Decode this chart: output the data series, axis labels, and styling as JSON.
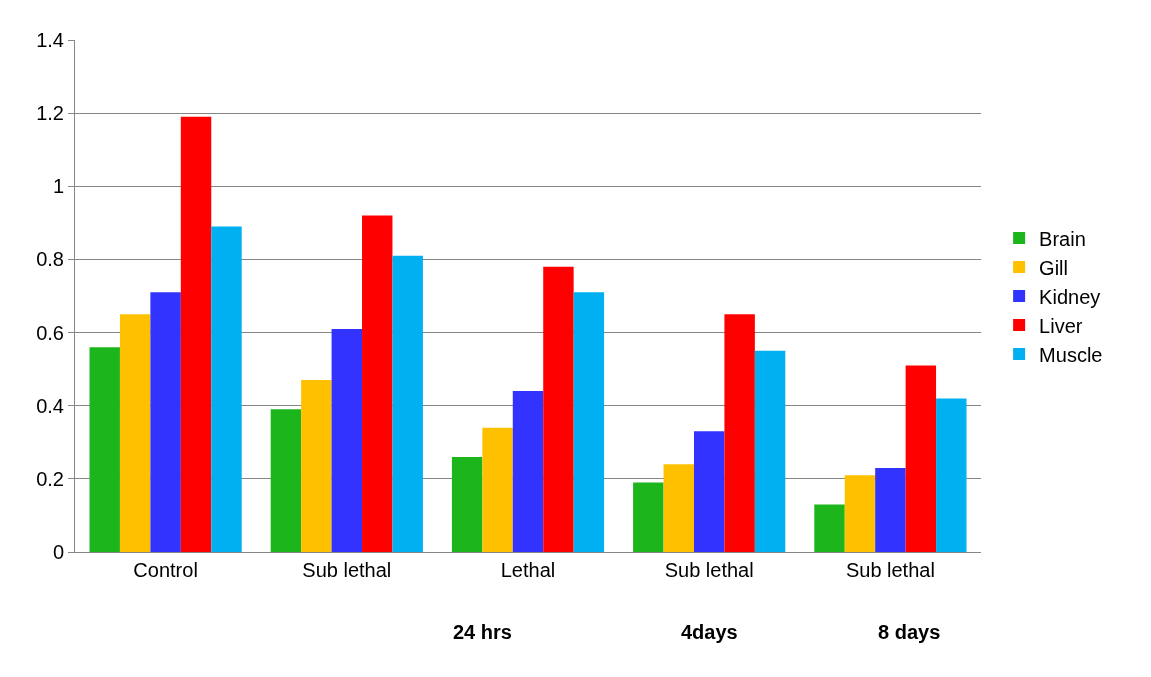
{
  "chart_data": {
    "type": "bar",
    "categories": [
      "Control",
      "Sub lethal",
      "Lethal",
      "Sub lethal",
      "Sub lethal"
    ],
    "series": [
      {
        "name": "Brain",
        "color": "#1cb51c",
        "values": [
          0.56,
          0.39,
          0.26,
          0.19,
          0.13
        ]
      },
      {
        "name": "Gill",
        "color": "#ffc000",
        "values": [
          0.65,
          0.47,
          0.34,
          0.24,
          0.21
        ]
      },
      {
        "name": "Kidney",
        "color": "#3333ff",
        "values": [
          0.71,
          0.61,
          0.44,
          0.33,
          0.23
        ]
      },
      {
        "name": "Liver",
        "color": "#ff0000",
        "values": [
          1.19,
          0.92,
          0.78,
          0.65,
          0.51
        ]
      },
      {
        "name": "Muscle",
        "color": "#00b0f0",
        "values": [
          0.89,
          0.81,
          0.71,
          0.55,
          0.42
        ]
      }
    ],
    "annotations": [
      "24 hrs",
      "4days",
      "8 days"
    ],
    "ylim": [
      0,
      1.4
    ],
    "yticks": [
      0,
      0.2,
      0.4,
      0.6,
      0.8,
      1,
      1.2,
      1.4
    ],
    "grid": "y",
    "legend": "right"
  }
}
